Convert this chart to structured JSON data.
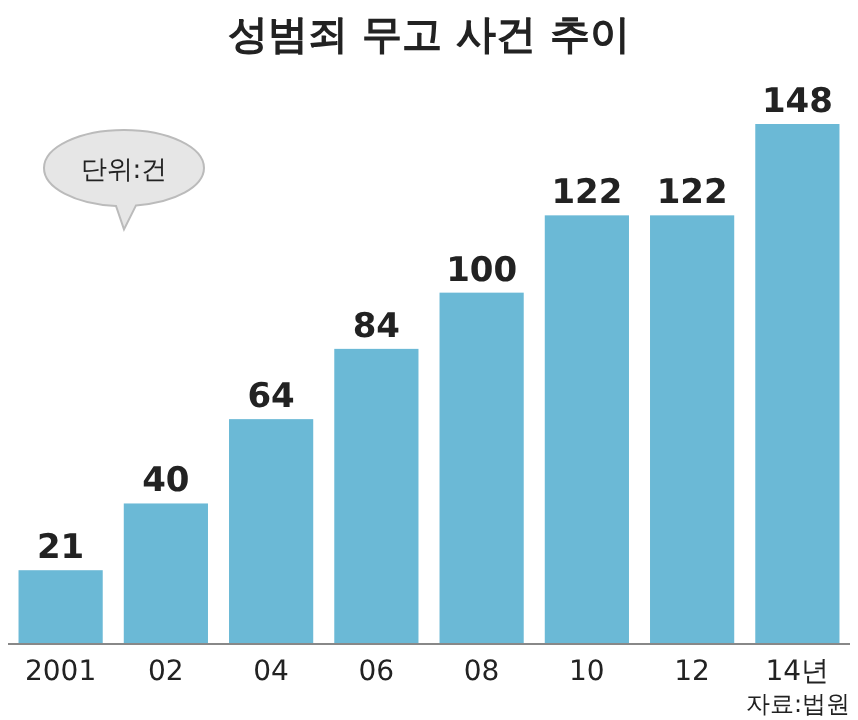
{
  "chart_data": {
    "type": "bar",
    "title": "성범죄 무고 사건 추이",
    "categories": [
      "2001",
      "02",
      "04",
      "06",
      "08",
      "10",
      "12",
      "14년"
    ],
    "values": [
      21,
      40,
      64,
      84,
      100,
      122,
      122,
      148
    ],
    "color": "#6bb9d6",
    "data_labels": true,
    "annotations": [
      "단위:건",
      "자료:법원"
    ]
  }
}
